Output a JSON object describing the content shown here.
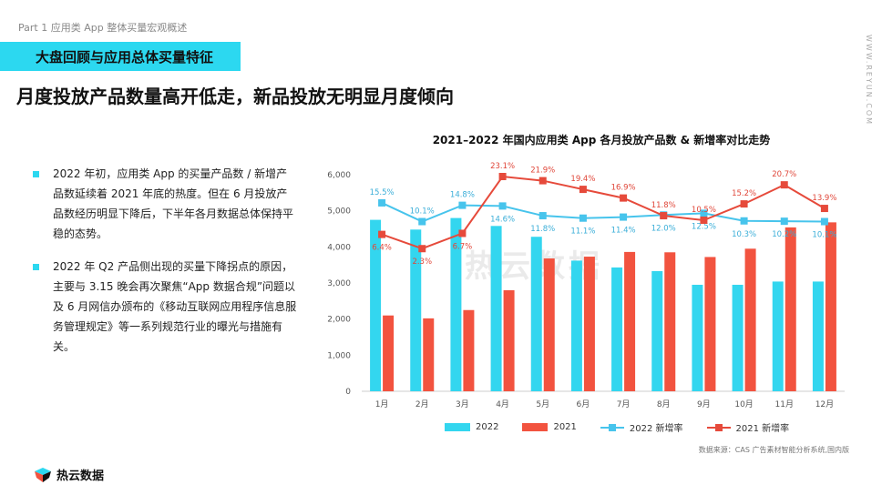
{
  "header": {
    "part_label": "Part 1 应用类 App 整体买量宏观概述",
    "section_title": "大盘回顾与应用总体买量特征",
    "headline": "月度投放产品数量高开低走，新品投放无明显月度倾向",
    "side_url": "WWW.REYUN.COM"
  },
  "bullets": [
    "2022 年初，应用类 App 的买量产品数 / 新增产品数延续着 2021 年底的热度。但在 6 月投放产品数经历明显下降后，下半年各月数据总体保持平稳的态势。",
    "2022 年 Q2 产品侧出现的买量下降拐点的原因，主要与 3.15 晚会再次聚焦“App 数据合规”问题以及 6 月网信办颁布的《移动互联网应用程序信息服务管理规定》等一系列规范行业的曝光与措施有关。"
  ],
  "watermark": "热云数据",
  "source": "数据来源：CAS 广告素材智能分析系统,国内版",
  "logo_text": "热云数据",
  "colors": {
    "accent": "#2cd8f0",
    "bar2022": "#33d6ef",
    "bar2021": "#f2533f",
    "line2022": "#47c4ec",
    "line2021": "#e64a3b"
  },
  "chart_data": {
    "type": "bar",
    "title": "2021–2022 年国内应用类 App 各月投放产品数 & 新增率对比走势",
    "categories": [
      "1月",
      "2月",
      "3月",
      "4月",
      "5月",
      "6月",
      "7月",
      "8月",
      "9月",
      "10月",
      "11月",
      "12月"
    ],
    "ylim": [
      0,
      6000
    ],
    "yticks": [
      "0",
      "1,000",
      "2,000",
      "3,000",
      "4,000",
      "5,000",
      "6,000"
    ],
    "series": [
      {
        "name": "2022",
        "type": "bar",
        "values": [
          4750,
          4480,
          4800,
          4580,
          4280,
          3620,
          3430,
          3330,
          2950,
          2950,
          3040,
          3040
        ]
      },
      {
        "name": "2021",
        "type": "bar",
        "values": [
          2100,
          2020,
          2250,
          2800,
          3680,
          3730,
          3860,
          3850,
          3720,
          3950,
          4540,
          4680
        ]
      },
      {
        "name": "2022 新增率",
        "type": "line",
        "values": [
          15.5,
          10.1,
          14.8,
          14.6,
          11.8,
          11.1,
          11.4,
          12.0,
          12.5,
          10.3,
          10.2,
          10.1
        ],
        "labels": [
          "15.5%",
          "10.1%",
          "14.8%",
          "14.6%",
          "11.8%",
          "11.1%",
          "11.4%",
          "12.0%",
          "12.5%",
          "10.3%",
          "10.2%",
          "10.1%"
        ]
      },
      {
        "name": "2021 新增率",
        "type": "line",
        "values": [
          6.4,
          2.3,
          6.7,
          23.1,
          21.9,
          19.4,
          16.9,
          11.8,
          10.5,
          15.2,
          20.7,
          13.9
        ],
        "labels": [
          "6.4%",
          "2.3%",
          "6.7%",
          "23.1%",
          "21.9%",
          "19.4%",
          "16.9%",
          "11.8%",
          "10.5%",
          "15.2%",
          "20.7%",
          "13.9%"
        ]
      }
    ],
    "legend_position": "bottom",
    "grid": false
  }
}
